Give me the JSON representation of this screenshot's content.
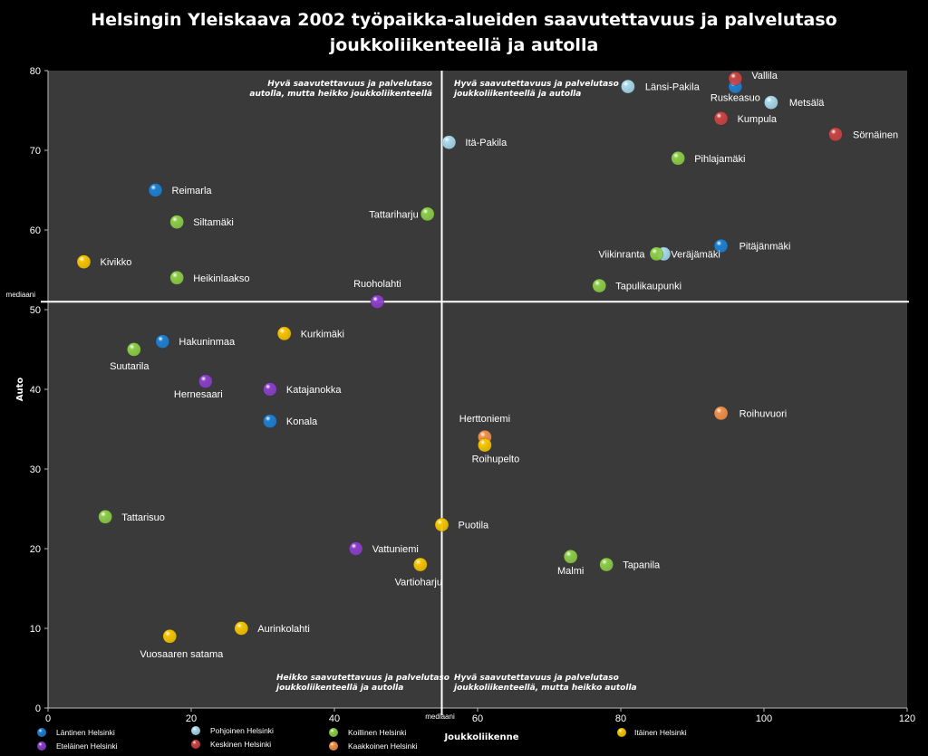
{
  "chart_data": {
    "type": "scatter",
    "title_line1": "Helsingin Yleiskaava 2002 työpaikka-alueiden  saavutettavuus ja palvelutaso",
    "title_line2": "joukkoliikenteellä ja autolla",
    "xlabel": "Joukkoliikenne",
    "ylabel": "Auto",
    "xlim": [
      0,
      120
    ],
    "ylim": [
      0,
      80
    ],
    "x_ticks": [
      0,
      20,
      40,
      60,
      80,
      100,
      120
    ],
    "y_ticks": [
      0,
      10,
      20,
      30,
      40,
      50,
      60,
      70,
      80
    ],
    "median_x": 55,
    "median_y": 51,
    "median_label_x": "mediaani",
    "median_label_y": "mediaani",
    "quadrant_labels": {
      "top_left": [
        "Hyvä saavutettavuus ja palvelutaso",
        "autolla, mutta heikko joukkoliikenteellä"
      ],
      "top_right": [
        "Hyvä saavutettavuus ja palvelutaso",
        "joukkoliikenteellä ja autolla"
      ],
      "bottom_left": [
        "Heikko saavutettavuus ja palvelutaso",
        "joukkoliikenteellä ja autolla"
      ],
      "bottom_right": [
        "Hyvä saavutettavuus ja palvelutaso",
        "joukkoliikenteellä, mutta heikko autolla"
      ]
    },
    "legend_position": "bottom",
    "series": [
      {
        "name": "Läntinen Helsinki",
        "color": "#1f7fd0",
        "points": [
          {
            "label": "Reimarla",
            "x": 15,
            "y": 65
          },
          {
            "label": "Hakuninmaa",
            "x": 16,
            "y": 46
          },
          {
            "label": "Konala",
            "x": 31,
            "y": 36
          },
          {
            "label": "Pitäjänmäki",
            "x": 94,
            "y": 58
          },
          {
            "label": "Ruskeasuo",
            "x": 96,
            "y": 78
          }
        ]
      },
      {
        "name": "Eteläinen Helsinki",
        "color": "#8a3fc8",
        "points": [
          {
            "label": "Ruoholahti",
            "x": 46,
            "y": 51
          },
          {
            "label": "Hernesaari",
            "x": 22,
            "y": 41
          },
          {
            "label": "Katajanokka",
            "x": 31,
            "y": 40
          },
          {
            "label": "Vattuniemi",
            "x": 43,
            "y": 20
          }
        ]
      },
      {
        "name": "Pohjoinen Helsinki",
        "color": "#a9d8ec",
        "points": [
          {
            "label": "Länsi-Pakila",
            "x": 81,
            "y": 78
          },
          {
            "label": "Metsälä",
            "x": 101,
            "y": 76
          },
          {
            "label": "Itä-Pakila",
            "x": 56,
            "y": 71
          },
          {
            "label": "Veräjämäki",
            "x": 86,
            "y": 57
          }
        ]
      },
      {
        "name": "Keskinen Helsinki",
        "color": "#c84444",
        "points": [
          {
            "label": "Vallila",
            "x": 96,
            "y": 79
          },
          {
            "label": "Kumpula",
            "x": 94,
            "y": 74
          },
          {
            "label": "Sörnäinen",
            "x": 110,
            "y": 72
          }
        ]
      },
      {
        "name": "Koillinen Helsinki",
        "color": "#8ccc48",
        "points": [
          {
            "label": "Siltamäki",
            "x": 18,
            "y": 61
          },
          {
            "label": "Heikinlaakso",
            "x": 18,
            "y": 54
          },
          {
            "label": "Suutarila",
            "x": 12,
            "y": 45
          },
          {
            "label": "Tattariharju",
            "x": 53,
            "y": 62
          },
          {
            "label": "Pihlajamäki",
            "x": 88,
            "y": 69
          },
          {
            "label": "Viikinranta",
            "x": 85,
            "y": 57
          },
          {
            "label": "Tapulikaupunki",
            "x": 77,
            "y": 53
          },
          {
            "label": "Tattarisuo",
            "x": 8,
            "y": 24
          },
          {
            "label": "Malmi",
            "x": 73,
            "y": 19
          },
          {
            "label": "Tapanila",
            "x": 78,
            "y": 18
          }
        ]
      },
      {
        "name": "Kaakkoinen Helsinki",
        "color": "#f0904a",
        "points": [
          {
            "label": "Herttoniemi",
            "x": 61,
            "y": 34
          },
          {
            "label": "Roihuvuori",
            "x": 94,
            "y": 37
          }
        ]
      },
      {
        "name": "Itäinen Helsinki",
        "color": "#f5c400",
        "points": [
          {
            "label": "Kivikko",
            "x": 5,
            "y": 56
          },
          {
            "label": "Kurkimäki",
            "x": 33,
            "y": 47
          },
          {
            "label": "Roihupelto",
            "x": 61,
            "y": 33
          },
          {
            "label": "Puotila",
            "x": 55,
            "y": 23
          },
          {
            "label": "Vartioharju",
            "x": 52,
            "y": 18
          },
          {
            "label": "Aurinkolahti",
            "x": 27,
            "y": 10
          },
          {
            "label": "Vuosaaren satama",
            "x": 17,
            "y": 9
          }
        ]
      }
    ]
  }
}
